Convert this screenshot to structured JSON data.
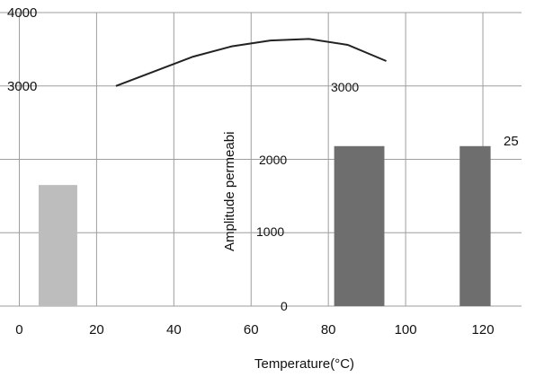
{
  "chart_data": {
    "type": "bar",
    "title": "",
    "xlabel": "Temperature(°C)",
    "ylabel": "Amplitude permeabi",
    "x_ticks": [
      0,
      20,
      40,
      60,
      80,
      100,
      120
    ],
    "y_ticks_outer": [
      4000,
      3000
    ],
    "y_ticks_inner": [
      3000,
      2000,
      1000,
      0
    ],
    "side_label": "25",
    "xlim": [
      -5,
      130
    ],
    "ylim": [
      0,
      4000
    ],
    "grid": true,
    "curve": {
      "x": [
        25,
        35,
        45,
        55,
        65,
        75,
        85,
        95
      ],
      "y": [
        3000,
        3200,
        3400,
        3540,
        3620,
        3640,
        3560,
        3340
      ]
    },
    "bars": [
      {
        "x": 10,
        "width": 10,
        "value": 1650,
        "color": "#bdbdbd"
      },
      {
        "x": 88,
        "width": 13,
        "value": 2180,
        "color": "#6e6e6e"
      },
      {
        "x": 118,
        "width": 8,
        "value": 2180,
        "color": "#6e6e6e"
      }
    ],
    "colors": {
      "grid": "#9e9e9e",
      "curve": "#222222",
      "bar_light": "#bdbdbd",
      "bar_dark": "#6e6e6e"
    }
  }
}
